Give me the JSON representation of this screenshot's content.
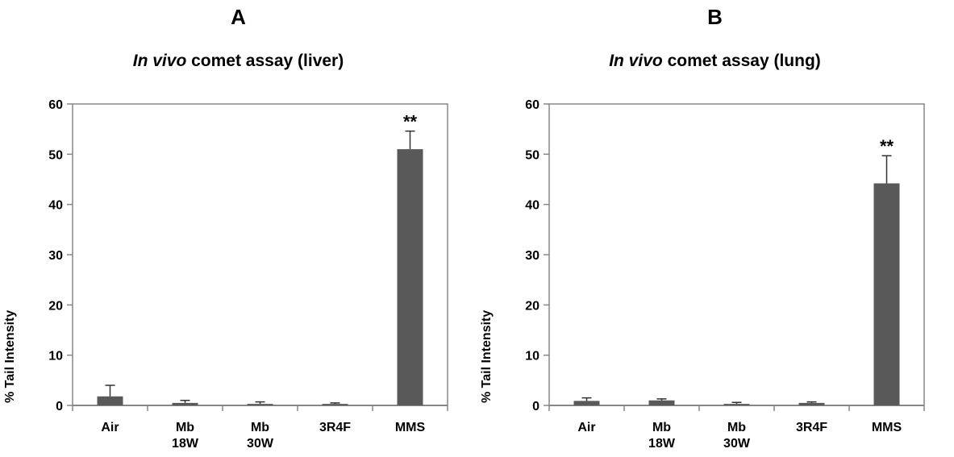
{
  "chart_data": [
    {
      "type": "bar",
      "panel_label": "A",
      "title_italic": "In vivo",
      "title_rest": "comet assay (liver)",
      "ylabel": "% Tail Intensity",
      "ylim": [
        0,
        60
      ],
      "yticks": [
        "0",
        "10",
        "20",
        "30",
        "40",
        "50",
        "60"
      ],
      "categories": [
        [
          "Air"
        ],
        [
          "Mb",
          "18W"
        ],
        [
          "Mb",
          "30W"
        ],
        [
          "3R4F"
        ],
        [
          "MMS"
        ]
      ],
      "values": [
        1.8,
        0.5,
        0.3,
        0.3,
        51.0
      ],
      "errors": [
        2.2,
        0.5,
        0.4,
        0.2,
        3.6
      ],
      "annotations": [
        "",
        "",
        "",
        "",
        "**"
      ],
      "bar_color": "#595959",
      "grid": false
    },
    {
      "type": "bar",
      "panel_label": "B",
      "title_italic": "In vivo",
      "title_rest": "comet assay (lung)",
      "ylabel": "% Tail Intensity",
      "ylim": [
        0,
        60
      ],
      "yticks": [
        "0",
        "10",
        "20",
        "30",
        "40",
        "50",
        "60"
      ],
      "categories": [
        [
          "Air"
        ],
        [
          "Mb",
          "18W"
        ],
        [
          "Mb",
          "30W"
        ],
        [
          "3R4F"
        ],
        [
          "MMS"
        ]
      ],
      "values": [
        0.9,
        1.0,
        0.3,
        0.5,
        44.2
      ],
      "errors": [
        0.6,
        0.3,
        0.3,
        0.2,
        5.5
      ],
      "annotations": [
        "",
        "",
        "",
        "",
        "**"
      ],
      "bar_color": "#595959",
      "grid": false
    }
  ]
}
